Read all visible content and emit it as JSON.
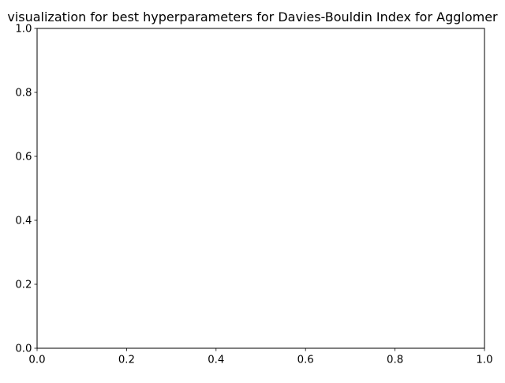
{
  "chart_data": {
    "type": "scatter",
    "title": "visualization for best hyperparameters for Davies-Bouldin Index for Agglomer",
    "xlabel": "",
    "ylabel": "",
    "xlim": [
      0.0,
      1.0
    ],
    "ylim": [
      0.0,
      1.0
    ],
    "x_ticks": [
      "0.0",
      "0.2",
      "0.4",
      "0.6",
      "0.8",
      "1.0"
    ],
    "y_ticks": [
      "0.0",
      "0.2",
      "0.4",
      "0.6",
      "0.8",
      "1.0"
    ],
    "grid": false,
    "series": []
  }
}
